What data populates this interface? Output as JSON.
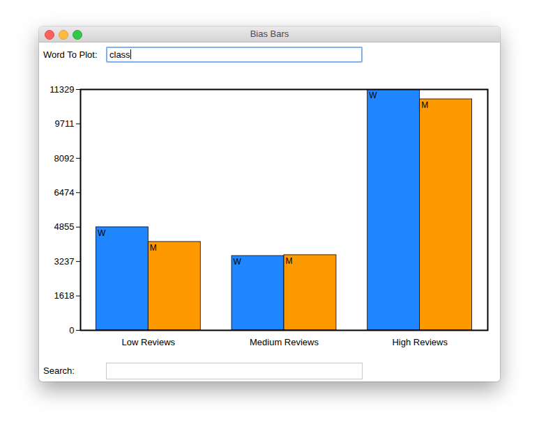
{
  "window": {
    "title": "Bias Bars",
    "fields": [
      {
        "label": "Word To Plot:",
        "value": "class",
        "focused": true
      },
      {
        "label": "Search:"
      }
    ]
  },
  "chart_data": {
    "type": "bar",
    "categories": [
      "Low Reviews",
      "Medium Reviews",
      "High Reviews"
    ],
    "series": [
      {
        "name": "W",
        "color": "#1f86ff",
        "values": [
          4850,
          3500,
          11329
        ]
      },
      {
        "name": "M",
        "color": "#ff9900",
        "values": [
          4160,
          3540,
          10870
        ]
      }
    ],
    "ylim": [
      0,
      11329
    ],
    "yticks": [
      0,
      1618,
      3237,
      4855,
      6474,
      8092,
      9711,
      11329
    ]
  }
}
